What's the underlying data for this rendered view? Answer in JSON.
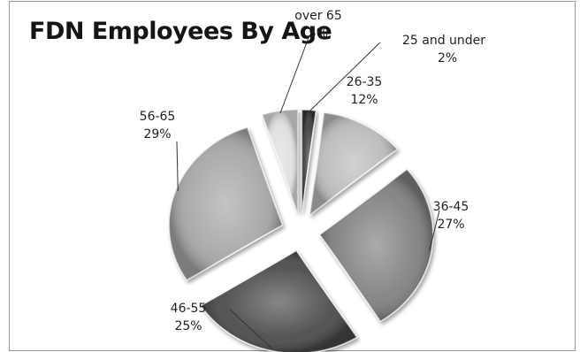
{
  "chart_data": {
    "type": "pie",
    "title": "FDN Employees By Age",
    "slices": [
      {
        "category": "25 and under",
        "value": 2,
        "label": "2%",
        "color": "#3a3a3a"
      },
      {
        "category": "26-35",
        "value": 12,
        "label": "12%",
        "color": "#b9b9b9"
      },
      {
        "category": "36-45",
        "value": 27,
        "label": "27%",
        "color": "#7d7d7d"
      },
      {
        "category": "46-55",
        "value": 25,
        "label": "25%",
        "color": "#464646"
      },
      {
        "category": "56-65",
        "value": 29,
        "label": "29%",
        "color": "#a4a4a4"
      },
      {
        "category": "over 65",
        "value": 5,
        "label": "5%",
        "color": "#dedede"
      }
    ],
    "exploded": true,
    "style": "3d-bevel",
    "legend": "none"
  }
}
